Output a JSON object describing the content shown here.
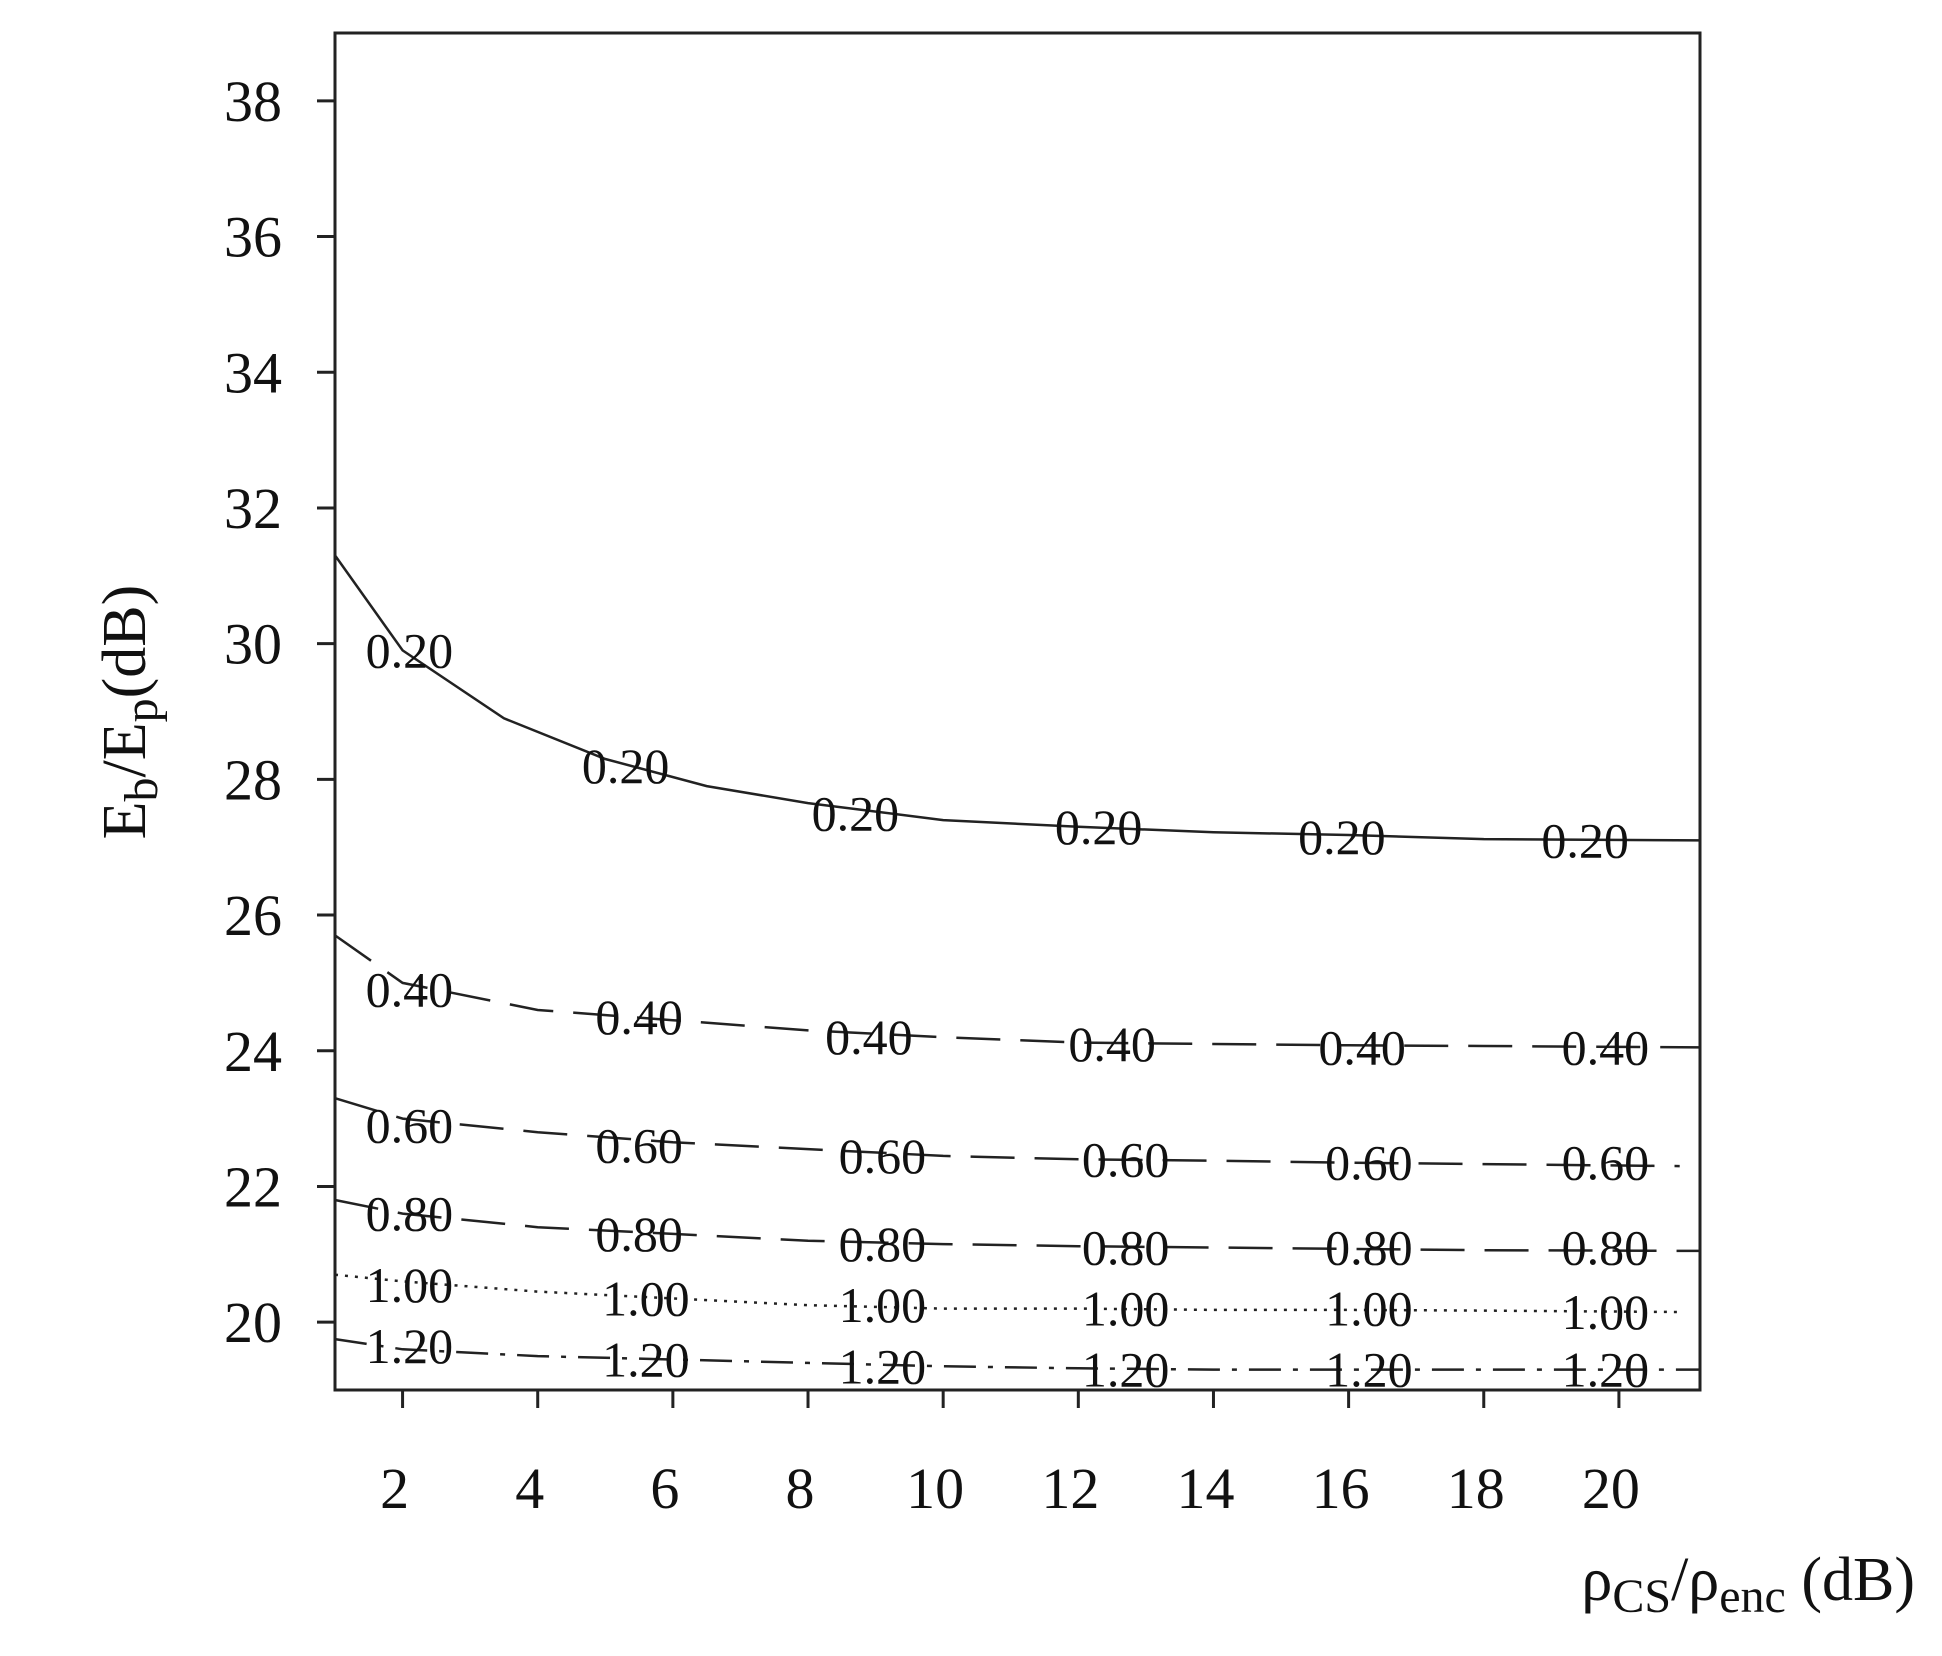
{
  "chart_data": {
    "type": "line",
    "subtype": "contour",
    "xlabel": {
      "main": "ρ",
      "sub1": "CS",
      "slash": "/ρ",
      "sub2": "enc",
      "unit": " (dB)"
    },
    "ylabel": {
      "e1": "E",
      "sub1": "b",
      "slash": "/E",
      "sub2": "p",
      "unit": "(dB)"
    },
    "xlim": [
      1,
      21.2
    ],
    "ylim": [
      19,
      39
    ],
    "xticks": [
      2,
      4,
      6,
      8,
      10,
      12,
      14,
      16,
      18,
      20
    ],
    "yticks": [
      20,
      22,
      24,
      26,
      28,
      30,
      32,
      34,
      36,
      38
    ],
    "grid": false,
    "series": [
      {
        "name": "0.20",
        "style": "solid",
        "x": [
          1,
          2,
          3.5,
          5,
          6.5,
          8,
          10,
          12,
          14,
          16,
          18,
          21.2
        ],
        "y": [
          31.3,
          29.9,
          28.9,
          28.3,
          27.9,
          27.65,
          27.4,
          27.3,
          27.22,
          27.18,
          27.12,
          27.1
        ],
        "labels": [
          {
            "x": 2.1,
            "y": 29.9
          },
          {
            "x": 5.3,
            "y": 28.2
          },
          {
            "x": 8.7,
            "y": 27.5
          },
          {
            "x": 12.3,
            "y": 27.3
          },
          {
            "x": 15.9,
            "y": 27.15
          },
          {
            "x": 19.5,
            "y": 27.1
          }
        ]
      },
      {
        "name": "0.40",
        "style": "dashed",
        "x": [
          1,
          2,
          4,
          6,
          8,
          10,
          12,
          14,
          16,
          18,
          21.2
        ],
        "y": [
          25.7,
          25.0,
          24.6,
          24.45,
          24.3,
          24.2,
          24.12,
          24.1,
          24.08,
          24.07,
          24.05
        ],
        "labels": [
          {
            "x": 2.1,
            "y": 24.9
          },
          {
            "x": 5.5,
            "y": 24.5
          },
          {
            "x": 8.9,
            "y": 24.2
          },
          {
            "x": 12.5,
            "y": 24.1
          },
          {
            "x": 16.2,
            "y": 24.05
          },
          {
            "x": 19.8,
            "y": 24.05
          }
        ]
      },
      {
        "name": "0.60",
        "style": "dashed",
        "x": [
          1,
          2,
          4,
          6,
          8,
          10,
          12,
          14,
          16,
          18,
          20.9
        ],
        "y": [
          23.3,
          23.0,
          22.8,
          22.65,
          22.55,
          22.45,
          22.4,
          22.38,
          22.35,
          22.33,
          22.3
        ],
        "labels": [
          {
            "x": 2.1,
            "y": 22.9
          },
          {
            "x": 5.5,
            "y": 22.6
          },
          {
            "x": 9.1,
            "y": 22.45
          },
          {
            "x": 12.7,
            "y": 22.4
          },
          {
            "x": 16.3,
            "y": 22.35
          },
          {
            "x": 19.8,
            "y": 22.35
          }
        ]
      },
      {
        "name": "0.80",
        "style": "dashed",
        "x": [
          1,
          2,
          4,
          6,
          8,
          10,
          12,
          14,
          16,
          18,
          21.2
        ],
        "y": [
          21.8,
          21.6,
          21.4,
          21.3,
          21.2,
          21.15,
          21.12,
          21.1,
          21.08,
          21.06,
          21.05
        ],
        "labels": [
          {
            "x": 2.1,
            "y": 21.6
          },
          {
            "x": 5.5,
            "y": 21.3
          },
          {
            "x": 9.1,
            "y": 21.15
          },
          {
            "x": 12.7,
            "y": 21.1
          },
          {
            "x": 16.3,
            "y": 21.1
          },
          {
            "x": 19.8,
            "y": 21.1
          }
        ]
      },
      {
        "name": "1.00",
        "style": "dotted",
        "x": [
          1,
          2,
          4,
          6,
          8,
          10,
          12,
          14,
          16,
          18,
          20.9
        ],
        "y": [
          20.7,
          20.6,
          20.45,
          20.35,
          20.25,
          20.2,
          20.2,
          20.18,
          20.18,
          20.17,
          20.15
        ],
        "labels": [
          {
            "x": 2.1,
            "y": 20.55
          },
          {
            "x": 5.6,
            "y": 20.35
          },
          {
            "x": 9.1,
            "y": 20.25
          },
          {
            "x": 12.7,
            "y": 20.2
          },
          {
            "x": 16.3,
            "y": 20.2
          },
          {
            "x": 19.8,
            "y": 20.15
          }
        ]
      },
      {
        "name": "1.20",
        "style": "dashdot",
        "x": [
          1,
          2,
          4,
          6,
          8,
          10,
          12,
          14,
          16,
          18,
          21.2
        ],
        "y": [
          19.75,
          19.6,
          19.5,
          19.45,
          19.4,
          19.35,
          19.32,
          19.3,
          19.3,
          19.3,
          19.3
        ],
        "labels": [
          {
            "x": 2.1,
            "y": 19.65
          },
          {
            "x": 5.6,
            "y": 19.45
          },
          {
            "x": 9.1,
            "y": 19.35
          },
          {
            "x": 12.7,
            "y": 19.3
          },
          {
            "x": 16.3,
            "y": 19.3
          },
          {
            "x": 19.8,
            "y": 19.3
          }
        ]
      }
    ]
  }
}
